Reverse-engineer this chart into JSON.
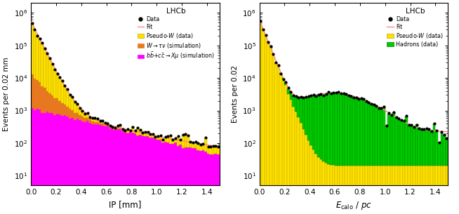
{
  "left": {
    "xlabel": "IP [mm]",
    "ylabel": "Events per 0.02 mm",
    "xlim": [
      0,
      1.5
    ],
    "ylim": [
      5,
      2000000
    ],
    "nbins": 75,
    "colors": {
      "magenta": "#FF00FF",
      "orange": "#E87820",
      "yellow": "#FFE000",
      "fit": "#FF8888",
      "data": "black"
    }
  },
  "right": {
    "xlabel": "$E_\\mathrm{calo}$ / $pc$",
    "ylabel": "Events per 0.02",
    "xlim": [
      0,
      1.5
    ],
    "ylim": [
      5,
      2000000
    ],
    "nbins": 75,
    "colors": {
      "green": "#00CC00",
      "yellow": "#FFE000",
      "fit": "#FF8888",
      "data": "black"
    }
  }
}
